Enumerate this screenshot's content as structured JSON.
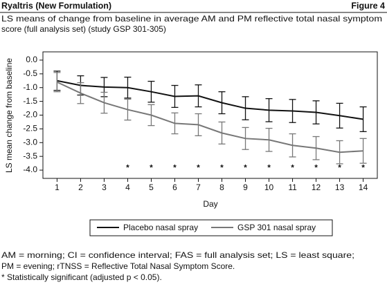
{
  "header": {
    "left": "Ryaltris (New Formulation)",
    "right": "Figure 4"
  },
  "chart_data": {
    "type": "line",
    "title": "LS means of change from baseline in average AM and PM reflective total nasal symptom",
    "subtitle": "score (full analysis set) (study GSP 301-305)",
    "y_label": "LS mean change from baseline",
    "x_label": "Day",
    "x": [
      1,
      2,
      3,
      4,
      5,
      6,
      7,
      8,
      9,
      10,
      11,
      12,
      13,
      14
    ],
    "xlim": [
      0.4,
      14.6
    ],
    "xticks": [
      1,
      2,
      3,
      4,
      5,
      6,
      7,
      8,
      9,
      10,
      11,
      12,
      13,
      14
    ],
    "ylim": [
      -4.3,
      0.3
    ],
    "yticks": [
      {
        "value": 0,
        "label": "0.0"
      },
      -0.5,
      {
        "value": -1,
        "label": "-1.0"
      },
      -1.5,
      {
        "value": -2,
        "label": "-2.0"
      },
      -2.5,
      {
        "value": -3,
        "label": "-3.0"
      },
      -3.5,
      {
        "value": -4,
        "label": "-4.0"
      }
    ],
    "series": [
      {
        "name": "Placebo nasal spray",
        "color": "#111111",
        "values": [
          -0.75,
          -0.92,
          -0.98,
          -1.0,
          -1.15,
          -1.32,
          -1.3,
          -1.55,
          -1.75,
          -1.82,
          -1.85,
          -1.9,
          -2.02,
          -2.15
        ],
        "errors": [
          0.35,
          0.35,
          0.35,
          0.38,
          0.38,
          0.4,
          0.4,
          0.4,
          0.42,
          0.42,
          0.42,
          0.42,
          0.45,
          0.45
        ]
      },
      {
        "name": "GSP 301 nasal spray",
        "color": "#777777",
        "values": [
          -0.8,
          -1.2,
          -1.55,
          -1.8,
          -2.0,
          -2.3,
          -2.35,
          -2.65,
          -2.85,
          -2.9,
          -3.1,
          -3.2,
          -3.35,
          -3.3
        ],
        "errors": [
          0.35,
          0.38,
          0.38,
          0.38,
          0.38,
          0.38,
          0.4,
          0.4,
          0.4,
          0.42,
          0.42,
          0.42,
          0.42,
          0.45
        ]
      }
    ],
    "markers": {
      "y": -3.85,
      "label": "*",
      "x": [
        4,
        5,
        6,
        7,
        8,
        9,
        10,
        11,
        12,
        13,
        14
      ]
    }
  },
  "footnotes": [
    "AM = morning; CI = confidence interval; FAS = full analysis set; LS = least square;",
    "PM = evening; rTNSS = Reflective Total Nasal Symptom Score.",
    "* Statistically significant (adjusted p < 0.05)."
  ]
}
